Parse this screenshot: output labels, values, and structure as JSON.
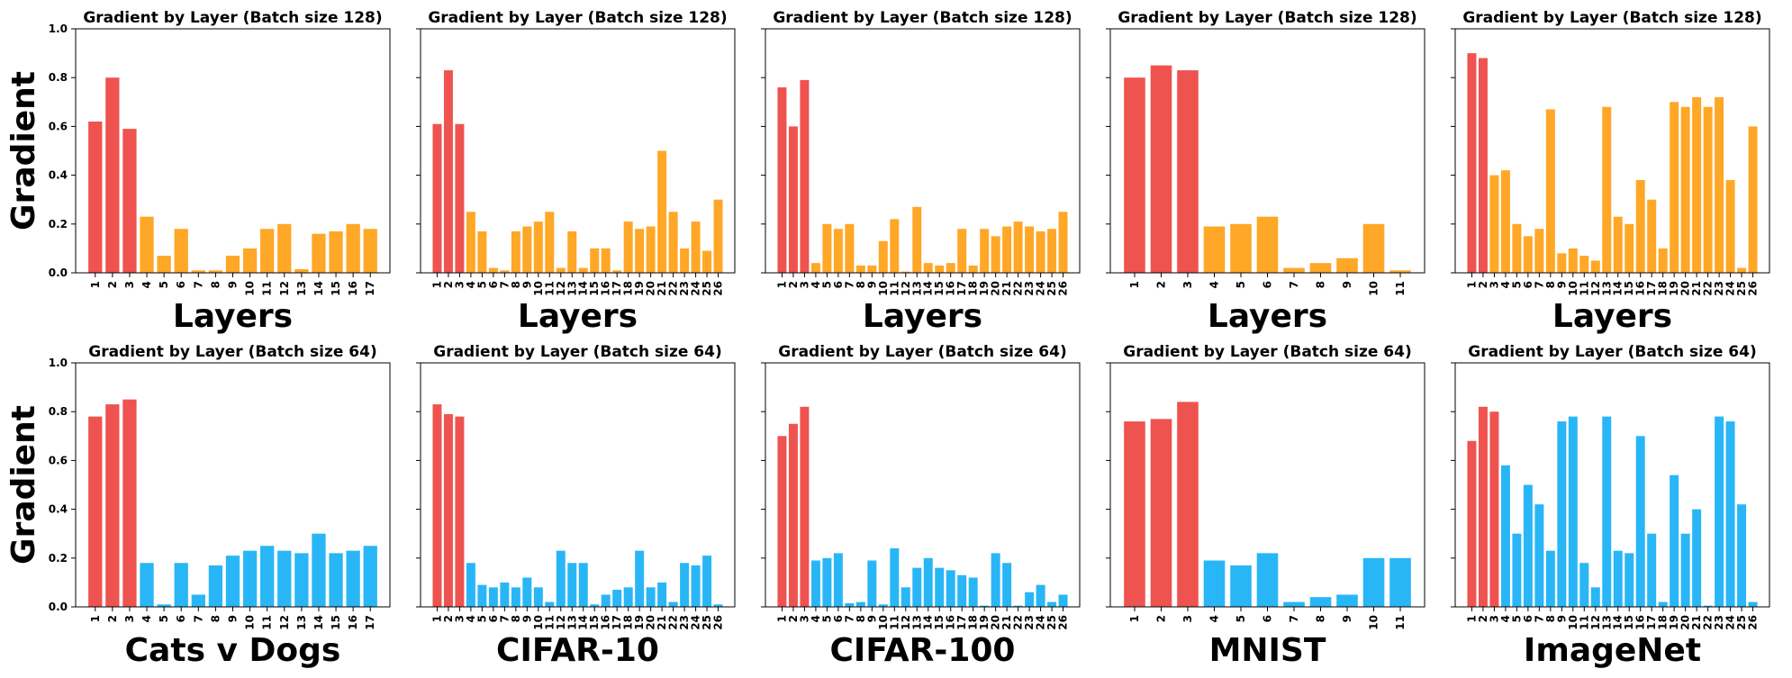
{
  "colors": {
    "highlight": "#ef5350",
    "top_row": "#ffa726",
    "bottom_row": "#29b6f6"
  },
  "chart_data": [
    {
      "type": "bar",
      "title": "Gradient by Layer (Batch size 128)",
      "xlabel": "Layers",
      "ylabel": "Gradient",
      "ylim": [
        0,
        1.0
      ],
      "yticks": [
        "0.0",
        "0.2",
        "0.4",
        "0.6",
        "0.8",
        "1.0"
      ],
      "categories": [
        "1",
        "2",
        "3",
        "4",
        "5",
        "6",
        "7",
        "8",
        "9",
        "10",
        "11",
        "12",
        "13",
        "14",
        "15",
        "16",
        "17"
      ],
      "values": [
        0.62,
        0.8,
        0.59,
        0.23,
        0.07,
        0.18,
        0.01,
        0.01,
        0.07,
        0.1,
        0.18,
        0.2,
        0.015,
        0.16,
        0.17,
        0.2,
        0.18
      ],
      "highlight_count": 3
    },
    {
      "type": "bar",
      "title": "Gradient by Layer (Batch size 128)",
      "xlabel": "Layers",
      "ylabel": "",
      "ylim": [
        0,
        1.0
      ],
      "categories": [
        "1",
        "2",
        "3",
        "4",
        "5",
        "6",
        "7",
        "8",
        "9",
        "10",
        "11",
        "12",
        "13",
        "14",
        "15",
        "16",
        "17",
        "18",
        "19",
        "20",
        "21",
        "22",
        "23",
        "24",
        "25",
        "26"
      ],
      "values": [
        0.61,
        0.83,
        0.61,
        0.25,
        0.17,
        0.02,
        0.01,
        0.17,
        0.19,
        0.21,
        0.25,
        0.02,
        0.17,
        0.02,
        0.1,
        0.1,
        0.01,
        0.21,
        0.18,
        0.19,
        0.5,
        0.25,
        0.1,
        0.21,
        0.09,
        0.3
      ],
      "highlight_count": 3
    },
    {
      "type": "bar",
      "title": "Gradient by Layer (Batch size 128)",
      "xlabel": "Layers",
      "ylabel": "",
      "ylim": [
        0,
        1.0
      ],
      "categories": [
        "1",
        "2",
        "3",
        "4",
        "5",
        "6",
        "7",
        "8",
        "9",
        "10",
        "11",
        "12",
        "13",
        "14",
        "15",
        "16",
        "17",
        "18",
        "19",
        "20",
        "21",
        "22",
        "23",
        "24",
        "25",
        "26"
      ],
      "values": [
        0.76,
        0.6,
        0.79,
        0.04,
        0.2,
        0.18,
        0.2,
        0.03,
        0.03,
        0.13,
        0.22,
        0.005,
        0.27,
        0.04,
        0.03,
        0.04,
        0.18,
        0.03,
        0.18,
        0.15,
        0.19,
        0.21,
        0.19,
        0.17,
        0.18,
        0.25
      ],
      "highlight_count": 3
    },
    {
      "type": "bar",
      "title": "Gradient by Layer (Batch size 128)",
      "xlabel": "Layers",
      "ylabel": "",
      "ylim": [
        0,
        1.0
      ],
      "categories": [
        "1",
        "2",
        "3",
        "4",
        "5",
        "6",
        "7",
        "8",
        "9",
        "10",
        "11"
      ],
      "values": [
        0.8,
        0.85,
        0.83,
        0.19,
        0.2,
        0.23,
        0.02,
        0.04,
        0.06,
        0.2,
        0.01
      ],
      "highlight_count": 3
    },
    {
      "type": "bar",
      "title": "Gradient by Layer (Batch size 128)",
      "xlabel": "Layers",
      "ylabel": "",
      "ylim": [
        0,
        1.0
      ],
      "categories": [
        "1",
        "2",
        "3",
        "4",
        "5",
        "6",
        "7",
        "8",
        "9",
        "10",
        "11",
        "12",
        "13",
        "14",
        "15",
        "16",
        "17",
        "18",
        "19",
        "20",
        "21",
        "22",
        "23",
        "24",
        "25",
        "26"
      ],
      "values": [
        0.9,
        0.88,
        0.4,
        0.42,
        0.2,
        0.15,
        0.18,
        0.67,
        0.08,
        0.1,
        0.07,
        0.05,
        0.68,
        0.23,
        0.2,
        0.38,
        0.3,
        0.1,
        0.7,
        0.68,
        0.72,
        0.68,
        0.72,
        0.38,
        0.02,
        0.6
      ],
      "highlight_count": 2
    },
    {
      "type": "bar",
      "title": "Gradient by Layer (Batch size 64)",
      "xlabel": "Cats v Dogs",
      "ylabel": "Gradient",
      "ylim": [
        0,
        1.0
      ],
      "yticks": [
        "0.0",
        "0.2",
        "0.4",
        "0.6",
        "0.8",
        "1.0"
      ],
      "categories": [
        "1",
        "2",
        "3",
        "4",
        "5",
        "6",
        "7",
        "8",
        "9",
        "10",
        "11",
        "12",
        "13",
        "14",
        "15",
        "16",
        "17"
      ],
      "values": [
        0.78,
        0.83,
        0.85,
        0.18,
        0.01,
        0.18,
        0.05,
        0.17,
        0.21,
        0.23,
        0.25,
        0.23,
        0.22,
        0.3,
        0.22,
        0.23,
        0.25
      ],
      "highlight_count": 3
    },
    {
      "type": "bar",
      "title": "Gradient by Layer (Batch size 64)",
      "xlabel": "CIFAR-10",
      "ylabel": "",
      "ylim": [
        0,
        1.0
      ],
      "categories": [
        "1",
        "2",
        "3",
        "4",
        "5",
        "6",
        "7",
        "8",
        "9",
        "10",
        "11",
        "12",
        "13",
        "14",
        "15",
        "16",
        "17",
        "18",
        "19",
        "20",
        "21",
        "22",
        "23",
        "24",
        "25",
        "26"
      ],
      "values": [
        0.83,
        0.79,
        0.78,
        0.18,
        0.09,
        0.08,
        0.1,
        0.08,
        0.12,
        0.08,
        0.02,
        0.23,
        0.18,
        0.18,
        0.01,
        0.05,
        0.07,
        0.08,
        0.23,
        0.08,
        0.1,
        0.02,
        0.18,
        0.17,
        0.21,
        0.01
      ],
      "highlight_count": 3
    },
    {
      "type": "bar",
      "title": "Gradient by Layer (Batch size 64)",
      "xlabel": "CIFAR-100",
      "ylabel": "",
      "ylim": [
        0,
        1.0
      ],
      "categories": [
        "1",
        "2",
        "3",
        "4",
        "5",
        "6",
        "7",
        "8",
        "9",
        "10",
        "11",
        "12",
        "13",
        "14",
        "15",
        "16",
        "17",
        "18",
        "19",
        "20",
        "21",
        "22",
        "23",
        "24",
        "25",
        "26"
      ],
      "values": [
        0.7,
        0.75,
        0.82,
        0.19,
        0.2,
        0.22,
        0.015,
        0.02,
        0.19,
        0.01,
        0.24,
        0.08,
        0.16,
        0.2,
        0.16,
        0.15,
        0.13,
        0.12,
        0.005,
        0.22,
        0.18,
        0.005,
        0.06,
        0.09,
        0.02,
        0.05
      ],
      "highlight_count": 3
    },
    {
      "type": "bar",
      "title": "Gradient by Layer (Batch size 64)",
      "xlabel": "MNIST",
      "ylabel": "",
      "ylim": [
        0,
        1.0
      ],
      "categories": [
        "1",
        "2",
        "3",
        "4",
        "5",
        "6",
        "7",
        "8",
        "9",
        "10",
        "11"
      ],
      "values": [
        0.76,
        0.77,
        0.84,
        0.19,
        0.17,
        0.22,
        0.02,
        0.04,
        0.05,
        0.2,
        0.2
      ],
      "highlight_count": 3
    },
    {
      "type": "bar",
      "title": "Gradient by Layer (Batch size 64)",
      "xlabel": "ImageNet",
      "ylabel": "",
      "ylim": [
        0,
        1.0
      ],
      "categories": [
        "1",
        "2",
        "3",
        "4",
        "5",
        "6",
        "7",
        "8",
        "9",
        "10",
        "11",
        "12",
        "13",
        "14",
        "15",
        "16",
        "17",
        "18",
        "19",
        "20",
        "21",
        "22",
        "23",
        "24",
        "25",
        "26"
      ],
      "values": [
        0.68,
        0.82,
        0.8,
        0.58,
        0.3,
        0.5,
        0.42,
        0.23,
        0.76,
        0.78,
        0.18,
        0.08,
        0.78,
        0.23,
        0.22,
        0.7,
        0.3,
        0.02,
        0.54,
        0.3,
        0.4,
        0.005,
        0.78,
        0.76,
        0.42,
        0.02
      ],
      "highlight_count": 3
    }
  ]
}
